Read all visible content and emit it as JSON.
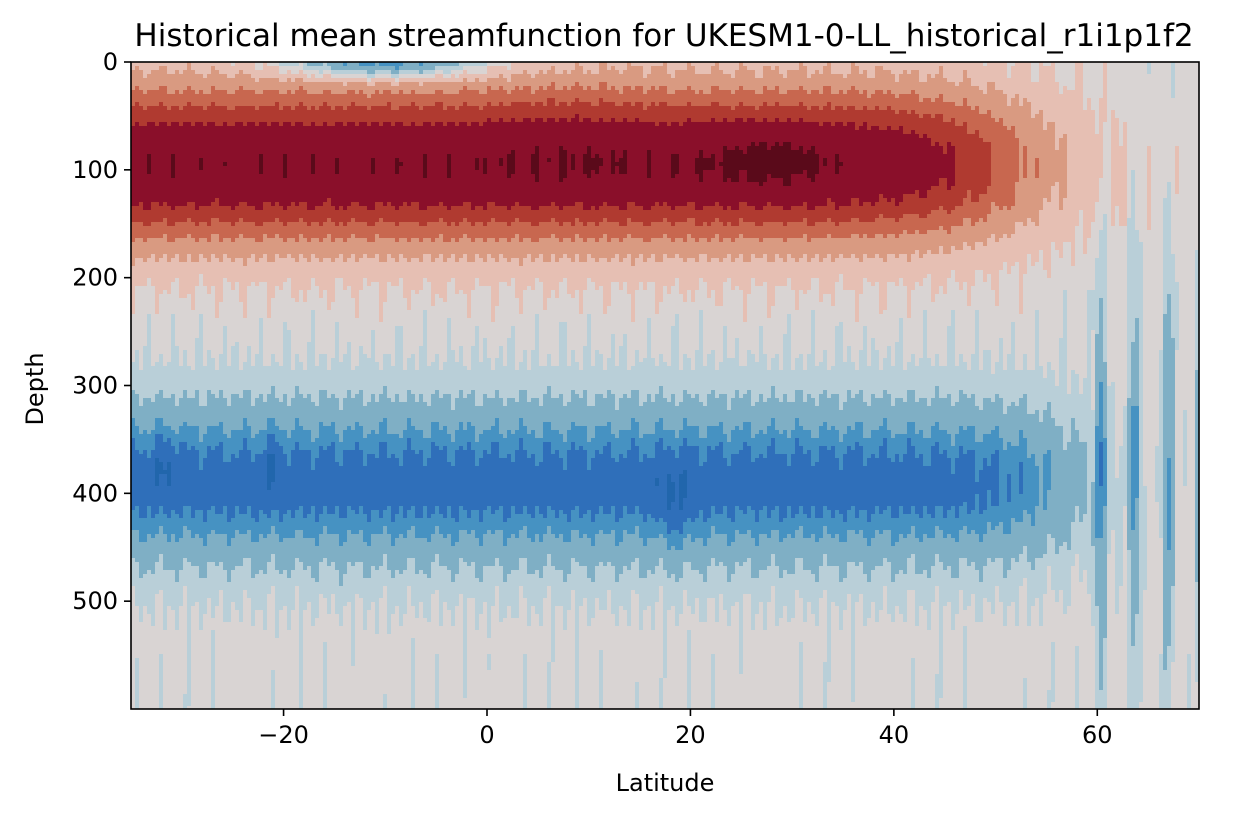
{
  "chart_data": {
    "type": "heatmap",
    "subtype": "filled-contour",
    "title": "Historical mean streamfunction for UKESM1-0-LL_historical_r1i1p1f2",
    "xlabel": "Latitude",
    "ylabel": "Depth",
    "xlim": [
      -35,
      70
    ],
    "ylim": [
      600,
      0
    ],
    "y_inverted": true,
    "x_ticks": [
      -20,
      0,
      20,
      40,
      60
    ],
    "x_tick_labels": [
      "−20",
      "0",
      "20",
      "40",
      "60"
    ],
    "y_ticks": [
      0,
      100,
      200,
      300,
      400,
      500
    ],
    "y_tick_labels": [
      "0",
      "100",
      "200",
      "300",
      "400",
      "500"
    ],
    "colormap": "RdBu_r",
    "grid": false,
    "legend": "none",
    "level_colors": [
      "#2166ac",
      "#2f6fba",
      "#4692c2",
      "#7fafc5",
      "#b9cfd8",
      "#d9d4d3",
      "#e6bfb3",
      "#d99a81",
      "#c8674f",
      "#b03a30",
      "#8a0f2a",
      "#5a0a1a"
    ],
    "features": [
      {
        "name": "near-surface negative cell",
        "level": 0,
        "lat": [
          -22,
          0
        ],
        "depth": [
          0,
          10
        ]
      },
      {
        "name": "main positive overturning cell core",
        "level": 10,
        "lat": [
          -35,
          48
        ],
        "depth": [
          60,
          135
        ]
      },
      {
        "name": "maximum core",
        "level": 11,
        "lat": [
          23,
          31
        ],
        "depth": [
          55,
          120
        ]
      },
      {
        "name": "deep negative cell",
        "level": 2,
        "lat": [
          -35,
          55
        ],
        "depth": [
          300,
          560
        ]
      },
      {
        "name": "deep negative minima",
        "level": 1,
        "lat": [
          17,
          20
        ],
        "depth": [
          360,
          450
        ]
      }
    ]
  }
}
